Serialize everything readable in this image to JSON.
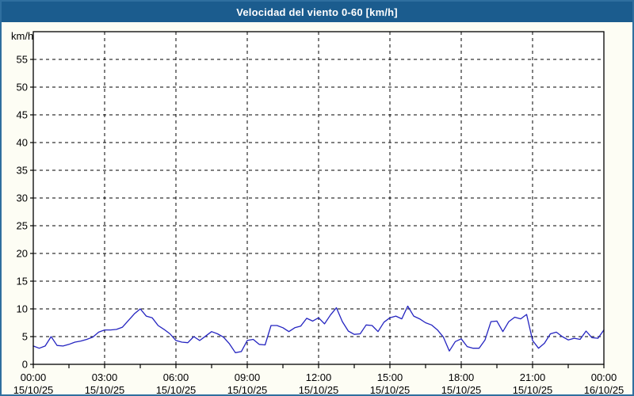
{
  "window": {
    "title": "Velocidad del viento 0-60 [km/h]"
  },
  "colors": {
    "titlebar_bg": "#1b5c8e",
    "titlebar_text": "#ffffff",
    "window_border": "#2f6f9f",
    "body_bg": "#fdfdf4",
    "plot_bg": "#ffffff",
    "frame": "#000000",
    "grid": "#000000",
    "line": "#2424c0",
    "text": "#000000"
  },
  "chart_data": {
    "type": "line",
    "title": "Velocidad del viento 0-60 [km/h]",
    "xlabel": "",
    "ylabel": "km/h",
    "ylim": [
      0,
      60
    ],
    "ytick_step": 5,
    "yticks": [
      0,
      5,
      10,
      15,
      20,
      25,
      30,
      35,
      40,
      45,
      50,
      55
    ],
    "grid": "dashed",
    "legend_position": "none",
    "x_total_minutes": 1440,
    "x_minor_tick_minutes": 90,
    "x_ticks": [
      {
        "minutes": 0,
        "time": "00:00",
        "date": "15/10/25"
      },
      {
        "minutes": 180,
        "time": "03:00",
        "date": "15/10/25"
      },
      {
        "minutes": 360,
        "time": "06:00",
        "date": "15/10/25"
      },
      {
        "minutes": 540,
        "time": "09:00",
        "date": "15/10/25"
      },
      {
        "minutes": 720,
        "time": "12:00",
        "date": "15/10/25"
      },
      {
        "minutes": 900,
        "time": "15:00",
        "date": "15/10/25"
      },
      {
        "minutes": 1080,
        "time": "18:00",
        "date": "15/10/25"
      },
      {
        "minutes": 1260,
        "time": "21:00",
        "date": "15/10/25"
      },
      {
        "minutes": 1440,
        "time": "00:00",
        "date": "16/10/25"
      }
    ],
    "series": [
      {
        "name": "Velocidad del viento",
        "unit": "km/h",
        "color": "#2424c0",
        "points": [
          [
            0,
            3.3
          ],
          [
            15,
            2.9
          ],
          [
            30,
            3.3
          ],
          [
            45,
            5.0
          ],
          [
            60,
            3.4
          ],
          [
            75,
            3.3
          ],
          [
            90,
            3.6
          ],
          [
            105,
            4.0
          ],
          [
            120,
            4.2
          ],
          [
            135,
            4.5
          ],
          [
            150,
            4.9
          ],
          [
            165,
            5.8
          ],
          [
            180,
            6.2
          ],
          [
            195,
            6.2
          ],
          [
            210,
            6.3
          ],
          [
            225,
            6.7
          ],
          [
            240,
            7.9
          ],
          [
            255,
            9.1
          ],
          [
            270,
            10.0
          ],
          [
            285,
            8.7
          ],
          [
            300,
            8.4
          ],
          [
            315,
            7.0
          ],
          [
            330,
            6.3
          ],
          [
            345,
            5.5
          ],
          [
            360,
            4.3
          ],
          [
            375,
            4.0
          ],
          [
            390,
            3.9
          ],
          [
            405,
            5.0
          ],
          [
            420,
            4.3
          ],
          [
            435,
            5.1
          ],
          [
            450,
            5.9
          ],
          [
            465,
            5.5
          ],
          [
            480,
            4.9
          ],
          [
            495,
            3.7
          ],
          [
            510,
            2.1
          ],
          [
            525,
            2.3
          ],
          [
            540,
            4.3
          ],
          [
            555,
            4.5
          ],
          [
            570,
            3.6
          ],
          [
            585,
            3.5
          ],
          [
            600,
            7.0
          ],
          [
            615,
            7.0
          ],
          [
            630,
            6.6
          ],
          [
            645,
            5.9
          ],
          [
            660,
            6.6
          ],
          [
            675,
            6.9
          ],
          [
            690,
            8.3
          ],
          [
            705,
            7.8
          ],
          [
            720,
            8.4
          ],
          [
            735,
            7.3
          ],
          [
            750,
            8.9
          ],
          [
            765,
            10.2
          ],
          [
            780,
            7.7
          ],
          [
            795,
            6.0
          ],
          [
            810,
            5.4
          ],
          [
            825,
            5.5
          ],
          [
            840,
            7.1
          ],
          [
            855,
            7.0
          ],
          [
            870,
            5.9
          ],
          [
            885,
            7.6
          ],
          [
            900,
            8.4
          ],
          [
            915,
            8.7
          ],
          [
            930,
            8.2
          ],
          [
            945,
            10.5
          ],
          [
            960,
            8.7
          ],
          [
            975,
            8.2
          ],
          [
            990,
            7.5
          ],
          [
            1005,
            7.1
          ],
          [
            1020,
            6.2
          ],
          [
            1035,
            4.9
          ],
          [
            1050,
            2.4
          ],
          [
            1065,
            4.1
          ],
          [
            1080,
            4.6
          ],
          [
            1095,
            3.2
          ],
          [
            1110,
            2.9
          ],
          [
            1125,
            2.9
          ],
          [
            1140,
            4.4
          ],
          [
            1155,
            7.7
          ],
          [
            1170,
            7.8
          ],
          [
            1185,
            5.9
          ],
          [
            1200,
            7.7
          ],
          [
            1215,
            8.5
          ],
          [
            1230,
            8.2
          ],
          [
            1245,
            9.0
          ],
          [
            1260,
            4.3
          ],
          [
            1275,
            2.9
          ],
          [
            1290,
            3.8
          ],
          [
            1305,
            5.5
          ],
          [
            1320,
            5.8
          ],
          [
            1335,
            5.0
          ],
          [
            1350,
            4.4
          ],
          [
            1365,
            4.7
          ],
          [
            1380,
            4.5
          ],
          [
            1395,
            6.0
          ],
          [
            1410,
            4.8
          ],
          [
            1425,
            4.7
          ],
          [
            1440,
            6.2
          ]
        ]
      }
    ]
  }
}
